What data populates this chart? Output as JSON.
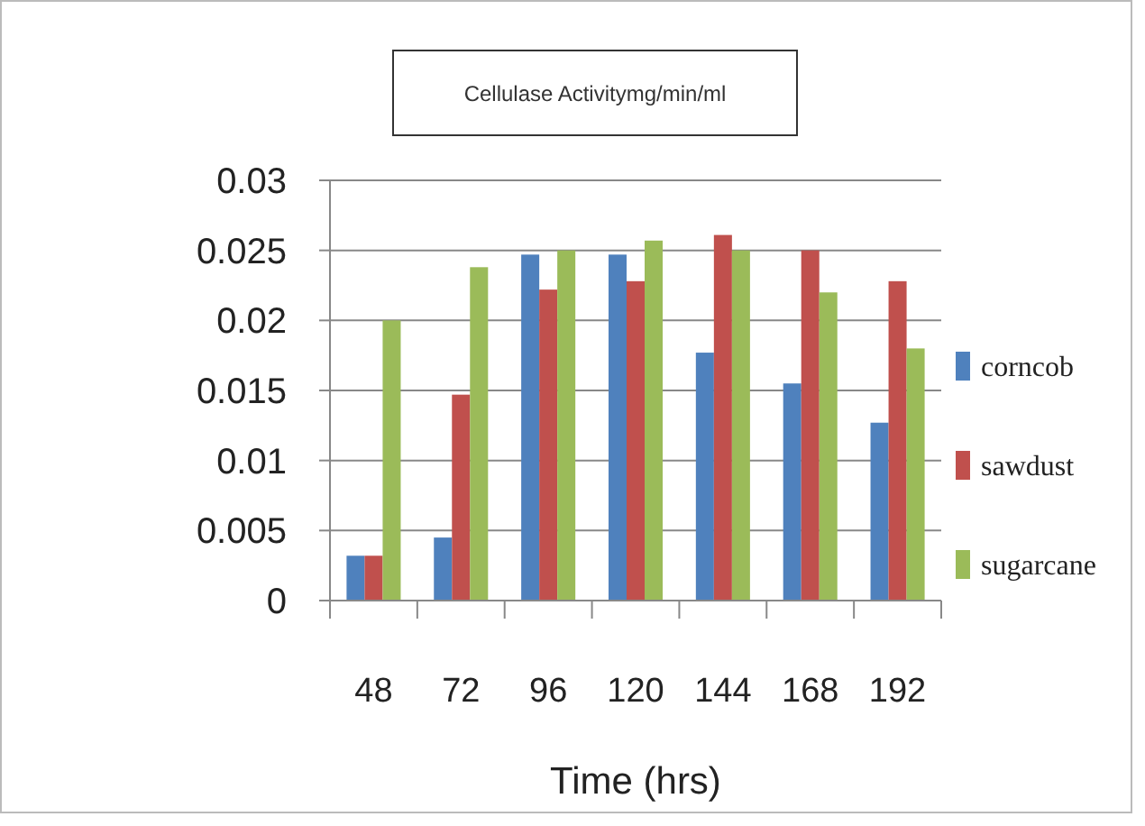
{
  "chart_data": {
    "type": "bar",
    "title": "Cellulase Activitymg/min/ml",
    "xlabel": "Time (hrs)",
    "categories": [
      "48",
      "72",
      "96",
      "120",
      "144",
      "168",
      "192"
    ],
    "series": [
      {
        "name": "corncob",
        "color": "#4f81bd",
        "values": [
          0.0032,
          0.0045,
          0.0247,
          0.0247,
          0.0177,
          0.0155,
          0.0127
        ]
      },
      {
        "name": "sawdust",
        "color": "#c0504d",
        "values": [
          0.0032,
          0.0147,
          0.0222,
          0.0228,
          0.0261,
          0.025,
          0.0228
        ]
      },
      {
        "name": "sugarcane",
        "color": "#9bbb59",
        "values": [
          0.02,
          0.0238,
          0.025,
          0.0257,
          0.025,
          0.022,
          0.018
        ]
      }
    ],
    "ylim": [
      0,
      0.03
    ],
    "yticks": [
      0,
      0.005,
      0.01,
      0.015,
      0.02,
      0.025,
      0.03
    ],
    "grid": "y",
    "legend": "right"
  }
}
